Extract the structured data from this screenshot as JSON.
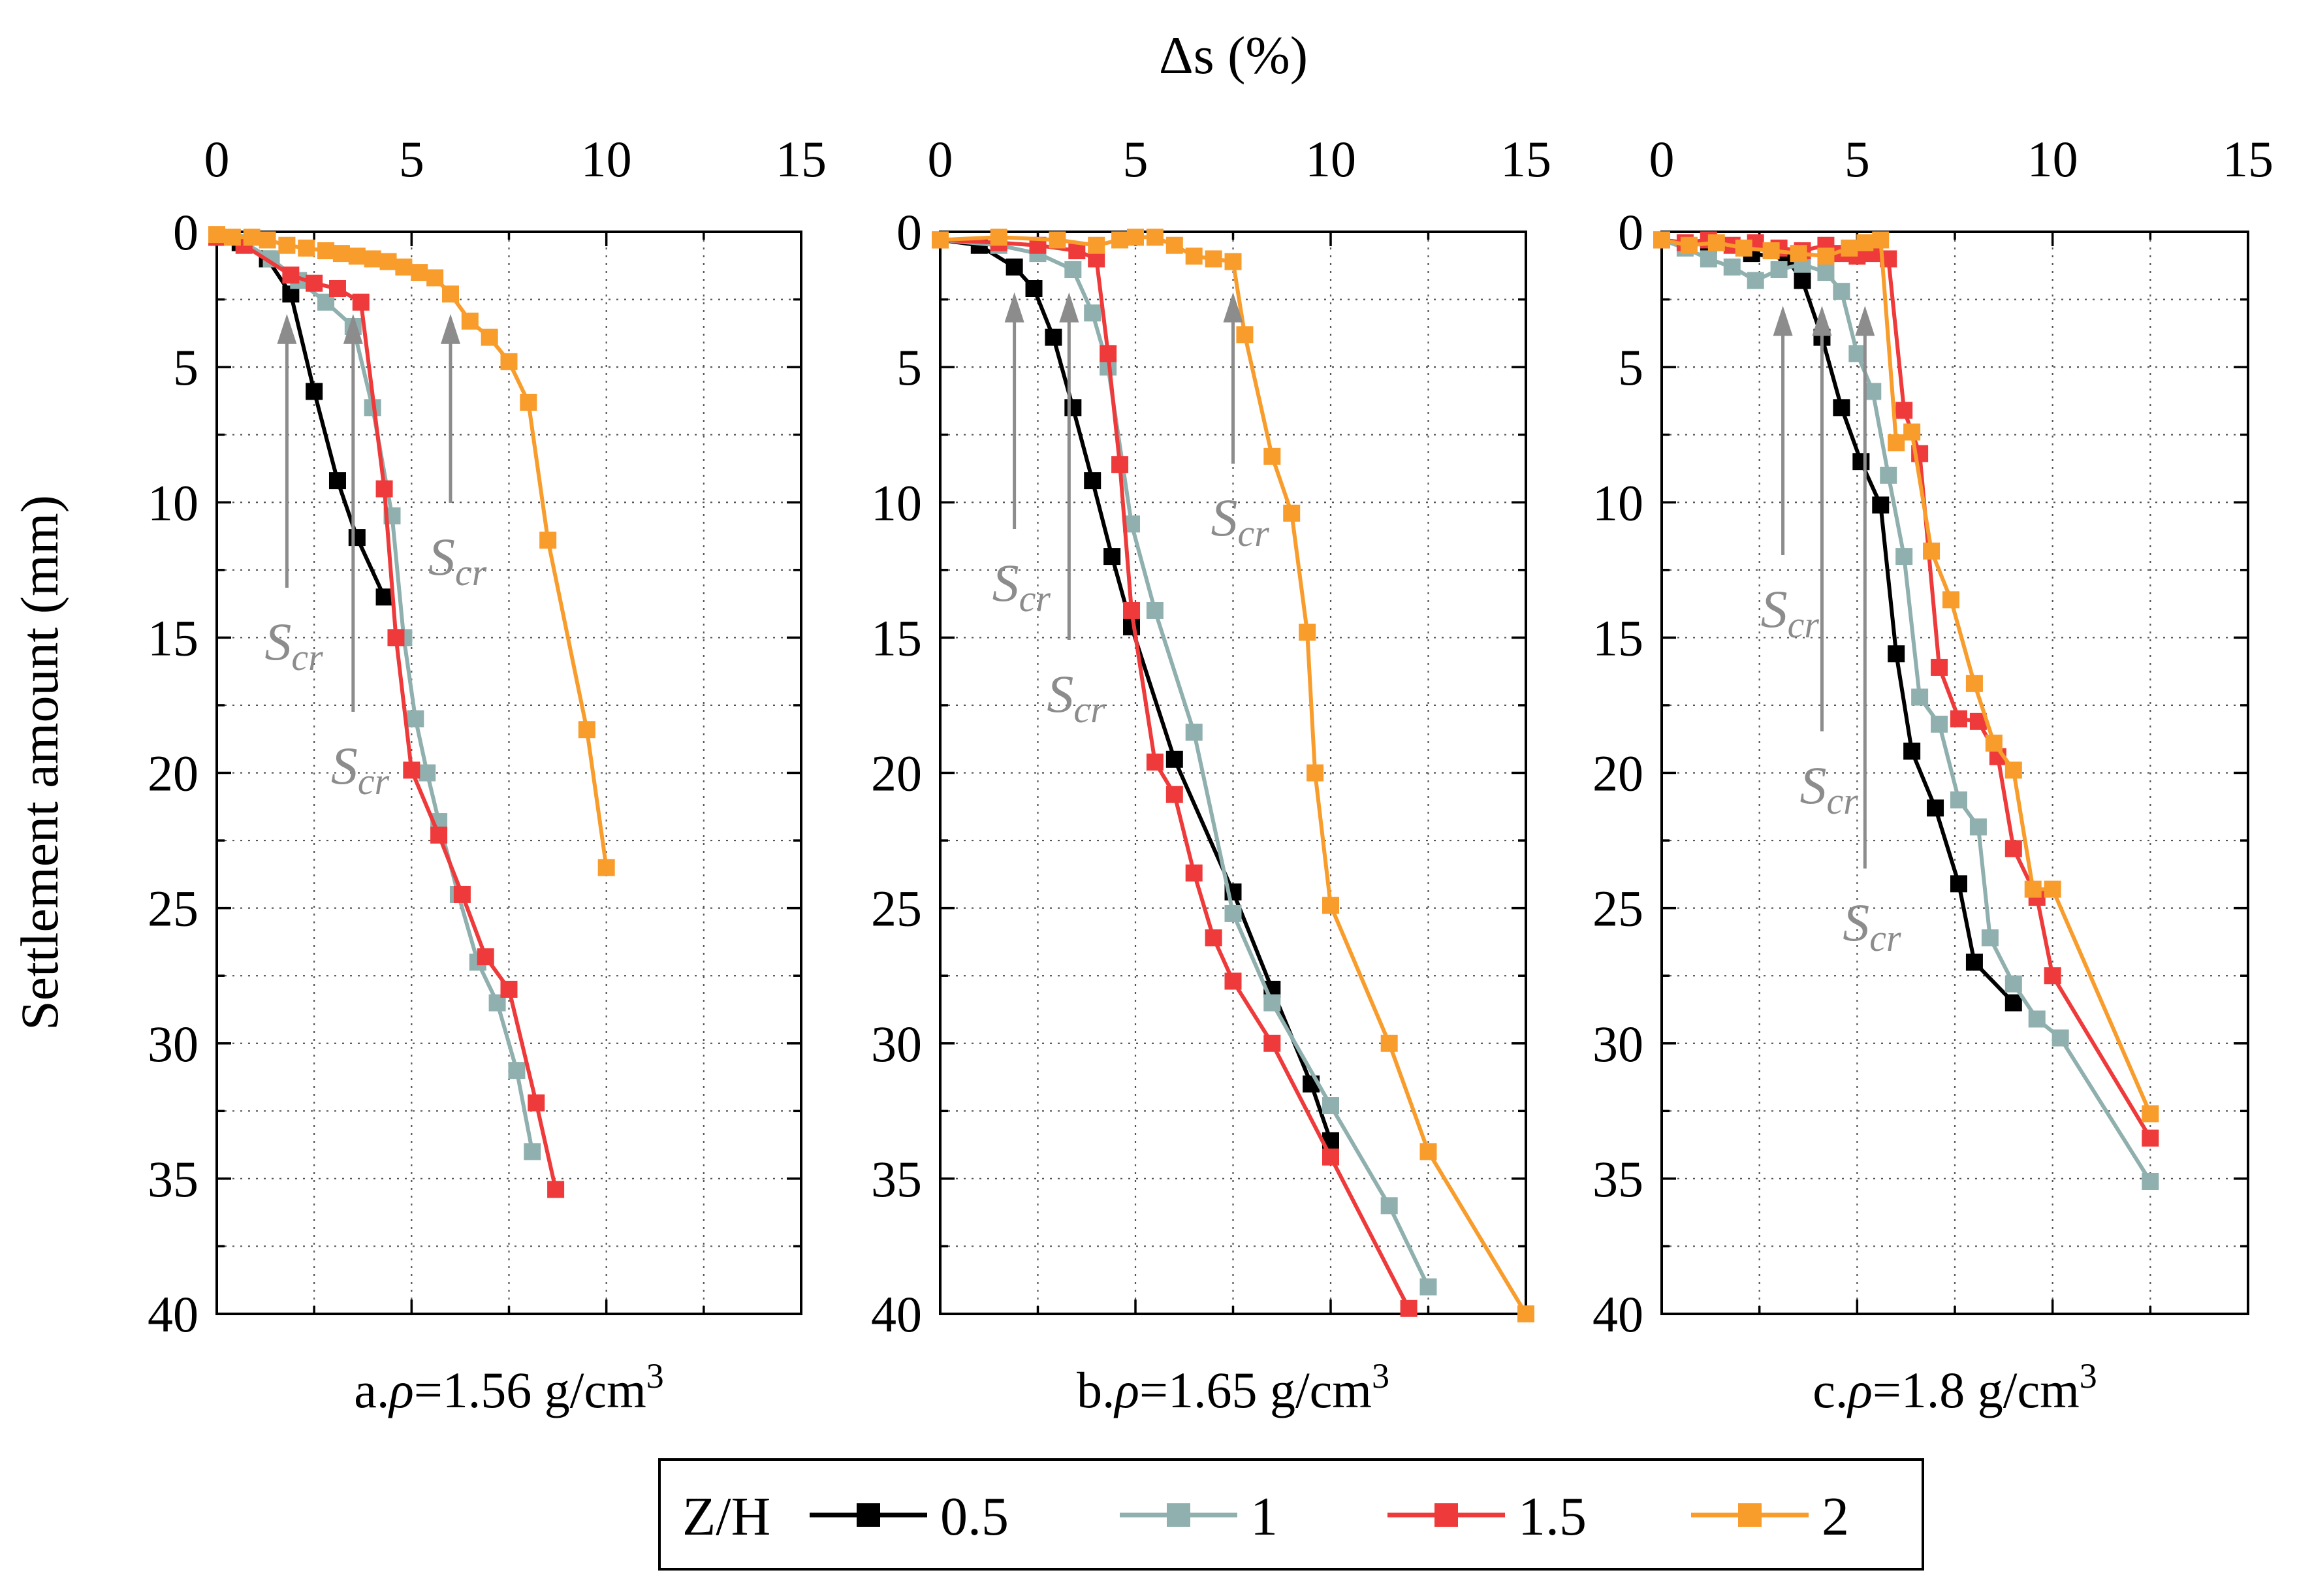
{
  "chart_data": {
    "type": "line",
    "x_title": "Δs (%)",
    "y_title": "Settlement amount (mm)",
    "xlim": [
      0,
      15
    ],
    "ylim": [
      0,
      40
    ],
    "y_inverted": true,
    "x_axis_position": "top",
    "x_ticks": [
      "0",
      "5",
      "10",
      "15"
    ],
    "y_ticks": [
      "0",
      "5",
      "10",
      "15",
      "20",
      "25",
      "30",
      "35",
      "40"
    ],
    "grid": true,
    "legend": {
      "title": "Z/H",
      "placement": "bottom-center",
      "entries": [
        {
          "label": "0.5",
          "color": "#000000"
        },
        {
          "label": "1",
          "color": "#8fb0ae"
        },
        {
          "label": "1.5",
          "color": "#ee3a3a"
        },
        {
          "label": "2",
          "color": "#f89c2c"
        }
      ]
    },
    "panels": [
      {
        "caption_prefix": "a.",
        "caption_rho": "ρ",
        "caption_value": "=1.56 g/cm",
        "caption_sup": "3",
        "annotations": [
          {
            "text": "S",
            "sub": "cr",
            "x": 1.8,
            "y": 2.6
          },
          {
            "text": "S",
            "sub": "cr",
            "x": 3.5,
            "y": 2.6
          },
          {
            "text": "S",
            "sub": "cr",
            "x": 6.0,
            "y": 2.6
          }
        ],
        "series": [
          {
            "name": "0.5",
            "color": "#000000",
            "x": [
              0,
              0.6,
              1.3,
              1.9,
              2.5,
              3.1,
              3.6,
              4.3
            ],
            "y": [
              0.2,
              0.4,
              1.0,
              2.3,
              5.9,
              9.2,
              11.3,
              13.5
            ]
          },
          {
            "name": "1",
            "color": "#8fb0ae",
            "x": [
              0,
              0.7,
              1.4,
              2.1,
              2.8,
              3.5,
              4.0,
              4.5,
              4.8,
              5.1,
              5.4,
              5.7,
              6.2,
              6.7,
              7.2,
              7.7,
              8.1
            ],
            "y": [
              0.2,
              0.4,
              1.0,
              1.8,
              2.6,
              3.5,
              6.5,
              10.5,
              15.0,
              18.0,
              20.0,
              21.8,
              24.5,
              27.0,
              28.5,
              31.0,
              34.0
            ]
          },
          {
            "name": "1.5",
            "color": "#ee3a3a",
            "x": [
              0,
              0.7,
              1.9,
              2.5,
              3.1,
              3.7,
              4.3,
              4.6,
              5.0,
              5.7,
              6.3,
              6.9,
              7.5,
              8.2,
              8.7
            ],
            "y": [
              0.2,
              0.5,
              1.6,
              1.9,
              2.1,
              2.6,
              9.5,
              15.0,
              19.9,
              22.3,
              24.5,
              26.8,
              28.0,
              32.2,
              35.4
            ]
          },
          {
            "name": "2",
            "color": "#f89c2c",
            "x": [
              0,
              0.4,
              0.9,
              1.3,
              1.8,
              2.3,
              2.8,
              3.2,
              3.6,
              4.0,
              4.4,
              4.8,
              5.2,
              5.6,
              6.0,
              6.5,
              7.0,
              7.5,
              8.0,
              8.5,
              9.5,
              10.0
            ],
            "y": [
              0.1,
              0.2,
              0.2,
              0.3,
              0.5,
              0.6,
              0.7,
              0.8,
              0.9,
              1.0,
              1.1,
              1.3,
              1.5,
              1.7,
              2.3,
              3.3,
              3.9,
              4.8,
              6.3,
              11.4,
              18.4,
              23.5
            ]
          }
        ]
      },
      {
        "caption_prefix": "b.",
        "caption_rho": "ρ",
        "caption_value": "=1.65 g/cm",
        "caption_sup": "3",
        "annotations": [
          {
            "text": "S",
            "sub": "cr",
            "x": 1.9,
            "y": 1.8
          },
          {
            "text": "S",
            "sub": "cr",
            "x": 3.3,
            "y": 1.8
          },
          {
            "text": "S",
            "sub": "cr",
            "x": 7.5,
            "y": 1.8
          }
        ],
        "series": [
          {
            "name": "0.5",
            "color": "#000000",
            "x": [
              0,
              1.0,
              1.9,
              2.4,
              2.9,
              3.4,
              3.9,
              4.4,
              4.9,
              6.0,
              7.5,
              8.5,
              9.5,
              10.0
            ],
            "y": [
              0.3,
              0.5,
              1.3,
              2.1,
              3.9,
              6.5,
              9.2,
              12.0,
              14.6,
              19.5,
              24.4,
              28.0,
              31.5,
              33.6
            ]
          },
          {
            "name": "1",
            "color": "#8fb0ae",
            "x": [
              0,
              1.5,
              2.5,
              3.4,
              3.9,
              4.3,
              4.9,
              5.5,
              6.5,
              7.5,
              8.5,
              10.0,
              11.5,
              12.5
            ],
            "y": [
              0.3,
              0.5,
              0.8,
              1.4,
              3.0,
              5.0,
              10.8,
              14.0,
              18.5,
              25.2,
              28.5,
              32.3,
              36.0,
              39.0
            ]
          },
          {
            "name": "1.5",
            "color": "#ee3a3a",
            "x": [
              0,
              1.5,
              2.5,
              3.5,
              4.0,
              4.3,
              4.6,
              4.9,
              5.5,
              6.0,
              6.5,
              7.0,
              7.5,
              8.5,
              10.0,
              12.0
            ],
            "y": [
              0.3,
              0.4,
              0.5,
              0.7,
              1.0,
              4.5,
              8.6,
              14.0,
              19.6,
              20.8,
              23.7,
              26.1,
              27.7,
              30.0,
              34.2,
              39.8
            ]
          },
          {
            "name": "2",
            "color": "#f89c2c",
            "x": [
              0,
              1.5,
              3.0,
              4.0,
              4.6,
              5.0,
              5.5,
              6.0,
              6.5,
              7.0,
              7.5,
              7.8,
              8.5,
              9.0,
              9.4,
              9.6,
              10.0,
              11.5,
              12.5,
              15.0
            ],
            "y": [
              0.3,
              0.2,
              0.3,
              0.5,
              0.3,
              0.2,
              0.2,
              0.5,
              0.9,
              1.0,
              1.1,
              3.8,
              8.3,
              10.4,
              14.8,
              20.0,
              24.9,
              30.0,
              34.0,
              40.0
            ]
          }
        ]
      },
      {
        "caption_prefix": "c.",
        "caption_rho": "ρ",
        "caption_value": "=1.8 g/cm",
        "caption_sup": "3",
        "annotations": [
          {
            "text": "S",
            "sub": "cr",
            "x": 3.1,
            "y": 2.3
          },
          {
            "text": "S",
            "sub": "cr",
            "x": 4.1,
            "y": 2.3
          },
          {
            "text": "S",
            "sub": "cr",
            "x": 5.2,
            "y": 2.3
          }
        ],
        "series": [
          {
            "name": "0.5",
            "color": "#000000",
            "x": [
              0,
              1.2,
              2.3,
              3.2,
              3.6,
              4.1,
              4.6,
              5.1,
              5.6,
              6.0,
              6.4,
              7.0,
              7.6,
              8.0,
              9.0
            ],
            "y": [
              0.3,
              0.5,
              0.8,
              1.0,
              1.8,
              3.9,
              6.5,
              8.5,
              10.1,
              15.6,
              19.2,
              21.3,
              24.1,
              27.0,
              28.5
            ]
          },
          {
            "name": "1",
            "color": "#8fb0ae",
            "x": [
              0,
              0.6,
              1.2,
              1.8,
              2.4,
              3.0,
              3.6,
              4.2,
              4.6,
              5.0,
              5.4,
              5.8,
              6.2,
              6.6,
              7.1,
              7.6,
              8.1,
              8.4,
              9.0,
              9.6,
              10.2,
              12.5
            ],
            "y": [
              0.3,
              0.6,
              1.0,
              1.3,
              1.8,
              1.4,
              1.2,
              1.5,
              2.2,
              4.5,
              5.9,
              9.0,
              12.0,
              17.2,
              18.2,
              21.0,
              22.0,
              26.1,
              27.8,
              29.1,
              29.8,
              35.1
            ]
          },
          {
            "name": "1.5",
            "color": "#ee3a3a",
            "x": [
              0,
              0.6,
              1.2,
              1.8,
              2.4,
              3.0,
              3.6,
              4.2,
              4.6,
              5.0,
              5.4,
              5.8,
              6.2,
              6.6,
              7.1,
              7.6,
              8.1,
              8.6,
              9.0,
              9.6,
              10.0,
              12.5
            ],
            "y": [
              0.3,
              0.4,
              0.3,
              0.5,
              0.4,
              0.6,
              0.7,
              0.5,
              0.8,
              0.9,
              0.8,
              1.0,
              6.6,
              8.2,
              16.1,
              18.0,
              18.1,
              19.4,
              22.8,
              24.6,
              27.5,
              33.5
            ]
          },
          {
            "name": "2",
            "color": "#f89c2c",
            "x": [
              0,
              0.7,
              1.4,
              2.1,
              2.8,
              3.5,
              4.2,
              4.8,
              5.2,
              5.6,
              6.0,
              6.4,
              6.9,
              7.4,
              8.0,
              8.5,
              9.0,
              9.5,
              10.0,
              12.5
            ],
            "y": [
              0.3,
              0.5,
              0.4,
              0.6,
              0.7,
              0.8,
              0.9,
              0.6,
              0.4,
              0.3,
              7.8,
              7.4,
              11.8,
              13.6,
              16.7,
              18.9,
              19.9,
              24.3,
              24.3,
              32.6
            ]
          }
        ]
      }
    ]
  }
}
